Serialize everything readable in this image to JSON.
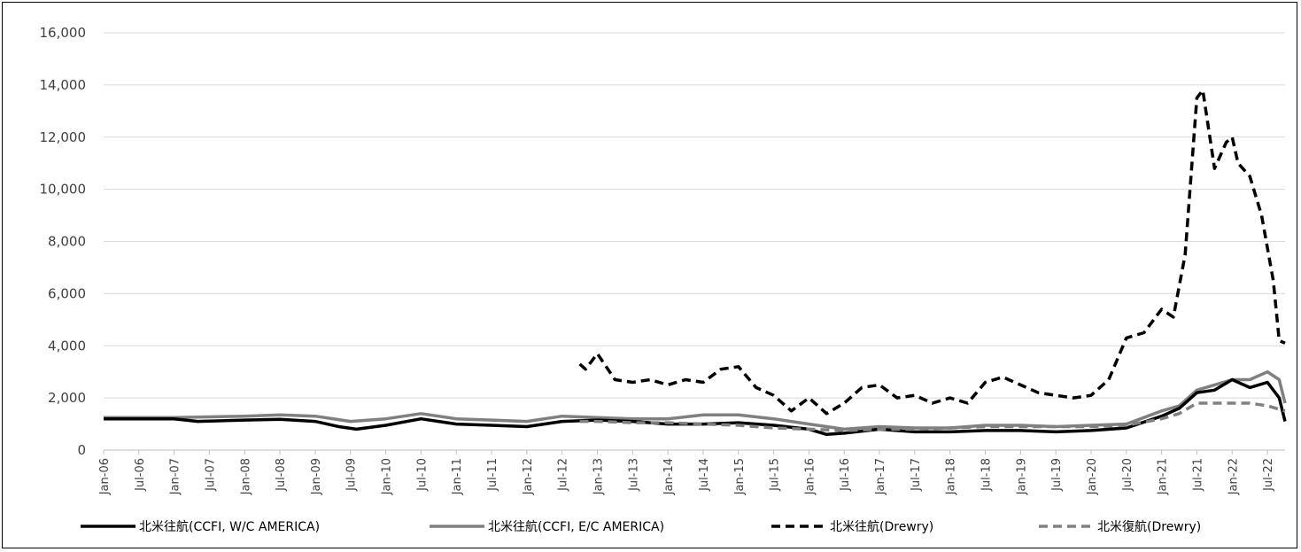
{
  "chart_data": {
    "type": "line",
    "title": "",
    "xlabel": "",
    "ylabel": "",
    "ylim": [
      0,
      16000
    ],
    "yticks": [
      0,
      2000,
      4000,
      6000,
      8000,
      10000,
      12000,
      14000,
      16000
    ],
    "ytick_labels": [
      "0",
      "2,000",
      "4,000",
      "6,000",
      "8,000",
      "10,000",
      "12,000",
      "14,000",
      "16,000"
    ],
    "x_start": "2006-01",
    "x_end": "2022-10",
    "xtick_labels": [
      "Jan-06",
      "Jul-06",
      "Jan-07",
      "Jul-07",
      "Jan-08",
      "Jul-08",
      "Jan-09",
      "Jul-09",
      "Jan-10",
      "Jul-10",
      "Jan-11",
      "Jul-11",
      "Jan-12",
      "Jul-12",
      "Jan-13",
      "Jul-13",
      "Jan-14",
      "Jul-14",
      "Jan-15",
      "Jul-15",
      "Jan-16",
      "Jul-16",
      "Jan-17",
      "Jul-17",
      "Jan-18",
      "Jul-18",
      "Jan-19",
      "Jul-19",
      "Jan-20",
      "Jul-20",
      "Jan-21",
      "Jul-21",
      "Jan-22",
      "Jul-22"
    ],
    "grid": "horizontal",
    "legend_position": "bottom",
    "series": [
      {
        "name": "北米往航(CCFI, W/C AMERICA)",
        "style": "solid",
        "color": "#000000",
        "points": [
          [
            "2006-01",
            1200
          ],
          [
            "2007-01",
            1200
          ],
          [
            "2007-05",
            1100
          ],
          [
            "2008-01",
            1150
          ],
          [
            "2008-07",
            1180
          ],
          [
            "2009-01",
            1100
          ],
          [
            "2009-05",
            900
          ],
          [
            "2009-08",
            800
          ],
          [
            "2010-01",
            950
          ],
          [
            "2010-07",
            1200
          ],
          [
            "2011-01",
            1000
          ],
          [
            "2011-07",
            950
          ],
          [
            "2012-01",
            900
          ],
          [
            "2012-07",
            1100
          ],
          [
            "2013-01",
            1150
          ],
          [
            "2013-07",
            1100
          ],
          [
            "2014-01",
            1000
          ],
          [
            "2014-07",
            1000
          ],
          [
            "2015-01",
            1050
          ],
          [
            "2015-07",
            950
          ],
          [
            "2016-01",
            800
          ],
          [
            "2016-04",
            600
          ],
          [
            "2016-07",
            650
          ],
          [
            "2017-01",
            800
          ],
          [
            "2017-07",
            700
          ],
          [
            "2018-01",
            700
          ],
          [
            "2018-07",
            750
          ],
          [
            "2019-01",
            750
          ],
          [
            "2019-07",
            700
          ],
          [
            "2020-01",
            750
          ],
          [
            "2020-07",
            850
          ],
          [
            "2021-01",
            1300
          ],
          [
            "2021-04",
            1600
          ],
          [
            "2021-07",
            2200
          ],
          [
            "2021-10",
            2300
          ],
          [
            "2022-01",
            2700
          ],
          [
            "2022-04",
            2400
          ],
          [
            "2022-07",
            2600
          ],
          [
            "2022-09",
            2000
          ],
          [
            "2022-10",
            1100
          ]
        ]
      },
      {
        "name": "北米往航(CCFI, E/C AMERICA)",
        "style": "solid",
        "color": "#808080",
        "points": [
          [
            "2006-01",
            1250
          ],
          [
            "2007-01",
            1250
          ],
          [
            "2008-01",
            1300
          ],
          [
            "2008-07",
            1350
          ],
          [
            "2009-01",
            1300
          ],
          [
            "2009-07",
            1100
          ],
          [
            "2010-01",
            1200
          ],
          [
            "2010-07",
            1400
          ],
          [
            "2011-01",
            1200
          ],
          [
            "2011-07",
            1150
          ],
          [
            "2012-01",
            1100
          ],
          [
            "2012-07",
            1300
          ],
          [
            "2013-01",
            1250
          ],
          [
            "2013-07",
            1200
          ],
          [
            "2014-01",
            1200
          ],
          [
            "2014-07",
            1350
          ],
          [
            "2015-01",
            1350
          ],
          [
            "2015-07",
            1200
          ],
          [
            "2016-01",
            1000
          ],
          [
            "2016-07",
            800
          ],
          [
            "2017-01",
            900
          ],
          [
            "2017-07",
            850
          ],
          [
            "2018-01",
            850
          ],
          [
            "2018-07",
            950
          ],
          [
            "2019-01",
            950
          ],
          [
            "2019-07",
            900
          ],
          [
            "2020-01",
            950
          ],
          [
            "2020-07",
            1000
          ],
          [
            "2021-01",
            1500
          ],
          [
            "2021-04",
            1700
          ],
          [
            "2021-07",
            2300
          ],
          [
            "2021-10",
            2500
          ],
          [
            "2022-01",
            2700
          ],
          [
            "2022-04",
            2700
          ],
          [
            "2022-07",
            3000
          ],
          [
            "2022-09",
            2700
          ],
          [
            "2022-10",
            1800
          ]
        ]
      },
      {
        "name": "北米往航(Drewry)",
        "style": "dashed",
        "color": "#000000",
        "points": [
          [
            "2012-10",
            3300
          ],
          [
            "2012-11",
            3100
          ],
          [
            "2013-01",
            3700
          ],
          [
            "2013-04",
            2700
          ],
          [
            "2013-07",
            2600
          ],
          [
            "2013-10",
            2700
          ],
          [
            "2014-01",
            2500
          ],
          [
            "2014-04",
            2700
          ],
          [
            "2014-07",
            2600
          ],
          [
            "2014-10",
            3100
          ],
          [
            "2015-01",
            3200
          ],
          [
            "2015-04",
            2400
          ],
          [
            "2015-07",
            2100
          ],
          [
            "2015-10",
            1500
          ],
          [
            "2016-01",
            2000
          ],
          [
            "2016-04",
            1400
          ],
          [
            "2016-07",
            1800
          ],
          [
            "2016-10",
            2400
          ],
          [
            "2017-01",
            2500
          ],
          [
            "2017-04",
            2000
          ],
          [
            "2017-07",
            2100
          ],
          [
            "2017-10",
            1800
          ],
          [
            "2018-01",
            2000
          ],
          [
            "2018-04",
            1800
          ],
          [
            "2018-07",
            2600
          ],
          [
            "2018-10",
            2800
          ],
          [
            "2019-01",
            2500
          ],
          [
            "2019-04",
            2200
          ],
          [
            "2019-07",
            2100
          ],
          [
            "2019-10",
            2000
          ],
          [
            "2020-01",
            2100
          ],
          [
            "2020-04",
            2700
          ],
          [
            "2020-07",
            4300
          ],
          [
            "2020-10",
            4500
          ],
          [
            "2021-01",
            5400
          ],
          [
            "2021-03",
            5100
          ],
          [
            "2021-05",
            7500
          ],
          [
            "2021-07",
            13500
          ],
          [
            "2021-08",
            13800
          ],
          [
            "2021-10",
            10800
          ],
          [
            "2021-12",
            11800
          ],
          [
            "2022-01",
            12000
          ],
          [
            "2022-02",
            11000
          ],
          [
            "2022-04",
            10500
          ],
          [
            "2022-06",
            9000
          ],
          [
            "2022-08",
            6500
          ],
          [
            "2022-09",
            4200
          ],
          [
            "2022-10",
            4100
          ]
        ]
      },
      {
        "name": "北米復航(Drewry)",
        "style": "dashed",
        "color": "#808080",
        "points": [
          [
            "2012-10",
            1100
          ],
          [
            "2013-01",
            1100
          ],
          [
            "2013-07",
            1050
          ],
          [
            "2014-01",
            1050
          ],
          [
            "2014-07",
            1000
          ],
          [
            "2015-01",
            950
          ],
          [
            "2015-07",
            850
          ],
          [
            "2016-01",
            800
          ],
          [
            "2016-07",
            750
          ],
          [
            "2017-01",
            800
          ],
          [
            "2017-07",
            800
          ],
          [
            "2018-01",
            850
          ],
          [
            "2018-07",
            900
          ],
          [
            "2019-01",
            900
          ],
          [
            "2019-07",
            900
          ],
          [
            "2020-01",
            900
          ],
          [
            "2020-07",
            950
          ],
          [
            "2021-01",
            1200
          ],
          [
            "2021-04",
            1400
          ],
          [
            "2021-07",
            1800
          ],
          [
            "2022-01",
            1800
          ],
          [
            "2022-04",
            1800
          ],
          [
            "2022-07",
            1700
          ],
          [
            "2022-10",
            1500
          ]
        ]
      }
    ]
  }
}
